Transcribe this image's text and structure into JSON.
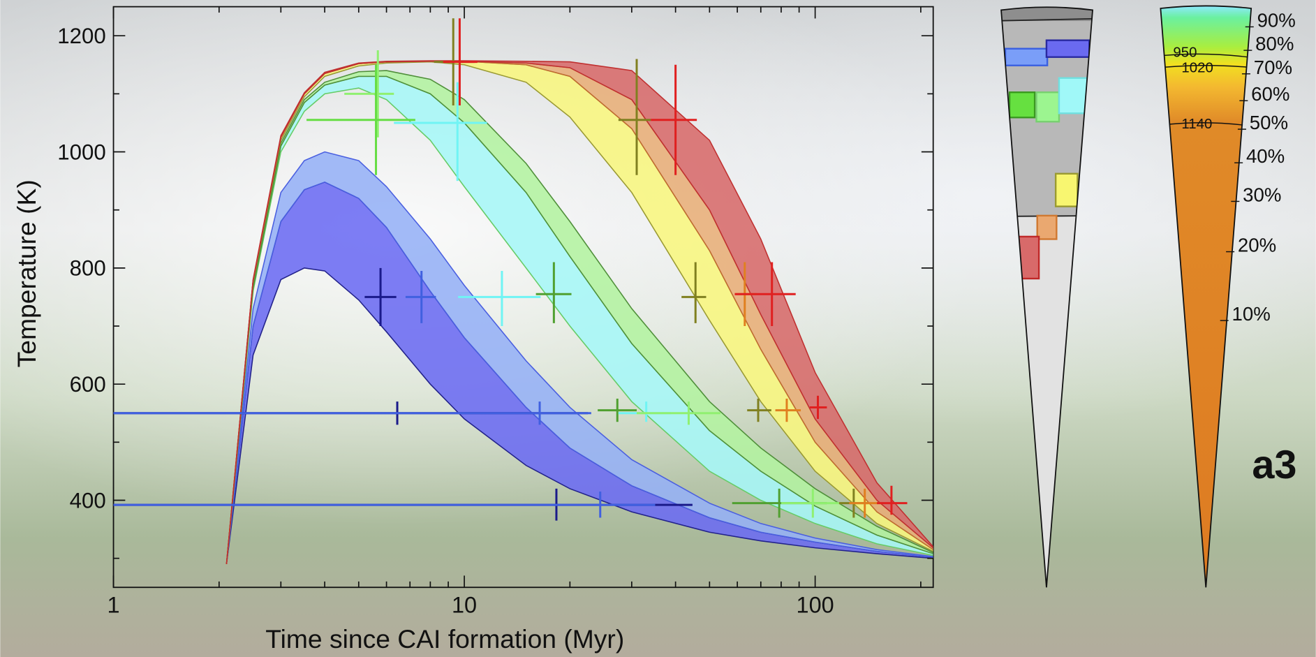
{
  "chart_data": {
    "type": "band",
    "xlabel": "Time since CAI formation (Myr)",
    "ylabel": "Temperature (K)",
    "xscale": "log",
    "xlim": [
      1,
      217
    ],
    "ylim": [
      250,
      1250
    ],
    "xticks": [
      1,
      10,
      100
    ],
    "yticks": [
      400,
      600,
      800,
      1000,
      1200
    ],
    "xminor_ticks": [
      2,
      3,
      4,
      5,
      6,
      7,
      8,
      9,
      20,
      30,
      40,
      50,
      60,
      70,
      80,
      90,
      200
    ],
    "yminor_ticks": [
      300,
      500,
      700,
      900,
      1100
    ],
    "x": [
      2.1,
      2.5,
      3,
      3.5,
      4,
      5,
      6,
      8,
      10,
      15,
      20,
      30,
      50,
      70,
      100,
      150,
      217
    ],
    "series": [
      {
        "color": "#6b6bf2",
        "edge": "#22228a",
        "lower": [
          290,
          650,
          780,
          800,
          795,
          745,
          690,
          600,
          540,
          460,
          420,
          380,
          345,
          330,
          318,
          308,
          300
        ],
        "upper": [
          290,
          700,
          880,
          935,
          948,
          920,
          870,
          760,
          680,
          560,
          490,
          425,
          370,
          345,
          328,
          312,
          302
        ]
      },
      {
        "color": "#95b0f6",
        "edge": "#4a5fe0",
        "lower": [
          290,
          700,
          880,
          935,
          948,
          920,
          870,
          760,
          680,
          560,
          490,
          425,
          370,
          345,
          328,
          312,
          302
        ],
        "upper": [
          290,
          730,
          930,
          985,
          1000,
          985,
          940,
          850,
          770,
          640,
          560,
          470,
          395,
          360,
          335,
          315,
          303
        ]
      },
      {
        "color": "#a6f7f7",
        "edge": "#66cc66",
        "lower": [
          290,
          760,
          1000,
          1070,
          1100,
          1110,
          1090,
          1020,
          940,
          800,
          700,
          570,
          450,
          400,
          360,
          325,
          305
        ],
        "upper": [
          290,
          765,
          1010,
          1085,
          1115,
          1130,
          1130,
          1100,
          1050,
          930,
          820,
          670,
          520,
          450,
          390,
          340,
          308
        ]
      },
      {
        "color": "#b3f2a0",
        "edge": "#4f8f3a",
        "lower": [
          290,
          765,
          1010,
          1085,
          1115,
          1130,
          1130,
          1100,
          1050,
          930,
          820,
          670,
          520,
          450,
          390,
          340,
          308
        ],
        "upper": [
          290,
          770,
          1015,
          1090,
          1120,
          1138,
          1140,
          1125,
          1090,
          980,
          880,
          730,
          570,
          490,
          420,
          355,
          310
        ]
      },
      {
        "color": "#f8f67e",
        "edge": "#999933",
        "lower": [
          290,
          775,
          1020,
          1095,
          1130,
          1148,
          1153,
          1155,
          1150,
          1120,
          1060,
          930,
          710,
          570,
          450,
          360,
          312
        ],
        "upper": [
          290,
          778,
          1025,
          1100,
          1135,
          1152,
          1155,
          1156,
          1156,
          1150,
          1130,
          1040,
          830,
          660,
          500,
          380,
          315
        ]
      },
      {
        "color": "#e8ae78",
        "edge": "#c06a30",
        "lower": [
          290,
          778,
          1025,
          1100,
          1135,
          1152,
          1155,
          1156,
          1156,
          1150,
          1130,
          1040,
          830,
          660,
          500,
          380,
          315
        ],
        "upper": [
          290,
          778,
          1025,
          1100,
          1135,
          1152,
          1155,
          1156,
          1156,
          1153,
          1145,
          1090,
          900,
          720,
          540,
          400,
          318
        ]
      },
      {
        "color": "#d76a6a",
        "edge": "#c03030",
        "lower": [
          290,
          778,
          1025,
          1100,
          1135,
          1152,
          1155,
          1156,
          1156,
          1153,
          1145,
          1090,
          900,
          720,
          540,
          400,
          318
        ],
        "upper": [
          290,
          780,
          1028,
          1102,
          1137,
          1153,
          1156,
          1157,
          1157,
          1156,
          1155,
          1140,
          1020,
          850,
          620,
          430,
          320
        ]
      }
    ],
    "points": [
      {
        "color": "#90f070",
        "x": 5.67,
        "y": 1100,
        "xerr": [
          4.55,
          6.3
        ],
        "yerr": [
          1025,
          1175
        ]
      },
      {
        "color": "#66dd44",
        "x": 5.6,
        "y": 1055,
        "xerr": [
          3.55,
          7.25
        ],
        "yerr": [
          960,
          1150
        ]
      },
      {
        "color": "#70f4f4",
        "x": 9.56,
        "y": 1050,
        "xerr": [
          6.3,
          11.6
        ],
        "yerr": [
          950,
          1120
        ]
      },
      {
        "color": "#808020",
        "x": 9.3,
        "y": 1155,
        "xerr": [
          8.2,
          10.7
        ],
        "yerr": [
          1080,
          1230
        ]
      },
      {
        "color": "#e02020",
        "x": 9.7,
        "y": 1155,
        "xerr": [
          8.7,
          10.9
        ],
        "yerr": [
          1080,
          1230
        ]
      },
      {
        "color": "#808020",
        "x": 31,
        "y": 1055,
        "xerr": [
          27.5,
          34
        ],
        "yerr": [
          960,
          1160
        ]
      },
      {
        "color": "#e02020",
        "x": 40,
        "y": 1055,
        "xerr": [
          34,
          46
        ],
        "yerr": [
          960,
          1150
        ]
      },
      {
        "color": "#1a1a8a",
        "x": 5.77,
        "y": 750,
        "xerr": [
          5.2,
          6.4
        ],
        "yerr": [
          700,
          800
        ]
      },
      {
        "color": "#4060e0",
        "x": 7.55,
        "y": 750,
        "xerr": [
          6.8,
          8.3
        ],
        "yerr": [
          705,
          795
        ]
      },
      {
        "color": "#70f4f4",
        "x": 12.8,
        "y": 750,
        "xerr": [
          9.6,
          16.5
        ],
        "yerr": [
          700,
          795
        ]
      },
      {
        "color": "#50a030",
        "x": 18,
        "y": 755,
        "xerr": [
          16,
          20.2
        ],
        "yerr": [
          705,
          810
        ]
      },
      {
        "color": "#808020",
        "x": 45.6,
        "y": 750,
        "xerr": [
          41.6,
          48.9
        ],
        "yerr": [
          705,
          810
        ]
      },
      {
        "color": "#e08020",
        "x": 63,
        "y": 755,
        "xerr": [
          59,
          68
        ],
        "yerr": [
          700,
          810
        ]
      },
      {
        "color": "#e02020",
        "x": 75.3,
        "y": 755,
        "xerr": [
          59,
          88
        ],
        "yerr": [
          700,
          810
        ]
      },
      {
        "color": "#1a1a8a",
        "x": 6.44,
        "y": 550,
        "xerr": [
          1,
          22.5
        ],
        "yerr": [
          530,
          570
        ]
      },
      {
        "color": "#4060e0",
        "x": 16.4,
        "y": 550,
        "xerr": [
          1,
          23
        ],
        "yerr": [
          530,
          570
        ]
      },
      {
        "color": "#50a030",
        "x": 27.3,
        "y": 555,
        "xerr": [
          24,
          31
        ],
        "yerr": [
          535,
          575
        ]
      },
      {
        "color": "#70f4f4",
        "x": 33,
        "y": 550,
        "xerr": [
          27.5,
          38.8
        ],
        "yerr": [
          535,
          570
        ]
      },
      {
        "color": "#90f070",
        "x": 43.6,
        "y": 550,
        "xerr": [
          31,
          53.7
        ],
        "yerr": [
          530,
          570
        ]
      },
      {
        "color": "#808020",
        "x": 68.8,
        "y": 555,
        "xerr": [
          64,
          75
        ],
        "yerr": [
          535,
          575
        ]
      },
      {
        "color": "#e08020",
        "x": 83,
        "y": 555,
        "xerr": [
          77,
          91
        ],
        "yerr": [
          535,
          575
        ]
      },
      {
        "color": "#e02020",
        "x": 101.8,
        "y": 560,
        "xerr": [
          96.5,
          108
        ],
        "yerr": [
          540,
          580
        ]
      },
      {
        "color": "#1a1a8a",
        "x": 18.3,
        "y": 392,
        "xerr": [
          1,
          44.7
        ],
        "yerr": [
          365,
          420
        ]
      },
      {
        "color": "#4060e0",
        "x": 24.4,
        "y": 392,
        "xerr": [
          1,
          35
        ],
        "yerr": [
          370,
          415
        ]
      },
      {
        "color": "#50a030",
        "x": 79,
        "y": 395,
        "xerr": [
          58,
          108
        ],
        "yerr": [
          370,
          420
        ]
      },
      {
        "color": "#90f070",
        "x": 98.5,
        "y": 395,
        "xerr": [
          80,
          121
        ],
        "yerr": [
          370,
          420
        ]
      },
      {
        "color": "#808020",
        "x": 128.8,
        "y": 395,
        "xerr": [
          117,
          142
        ],
        "yerr": [
          370,
          420
        ]
      },
      {
        "color": "#e08020",
        "x": 138.5,
        "y": 395,
        "xerr": [
          125,
          154
        ],
        "yerr": [
          370,
          420
        ]
      },
      {
        "color": "#e02020",
        "x": 165,
        "y": 395,
        "xerr": [
          150,
          183
        ],
        "yerr": [
          375,
          425
        ]
      }
    ]
  },
  "wedges": {
    "contour_labels": [
      "950",
      "1020",
      "1140"
    ],
    "percent_labels": [
      "90%",
      "80%",
      "70%",
      "60%",
      "50%",
      "40%",
      "30%",
      "20%",
      "10%"
    ],
    "panel_label": "a3"
  }
}
